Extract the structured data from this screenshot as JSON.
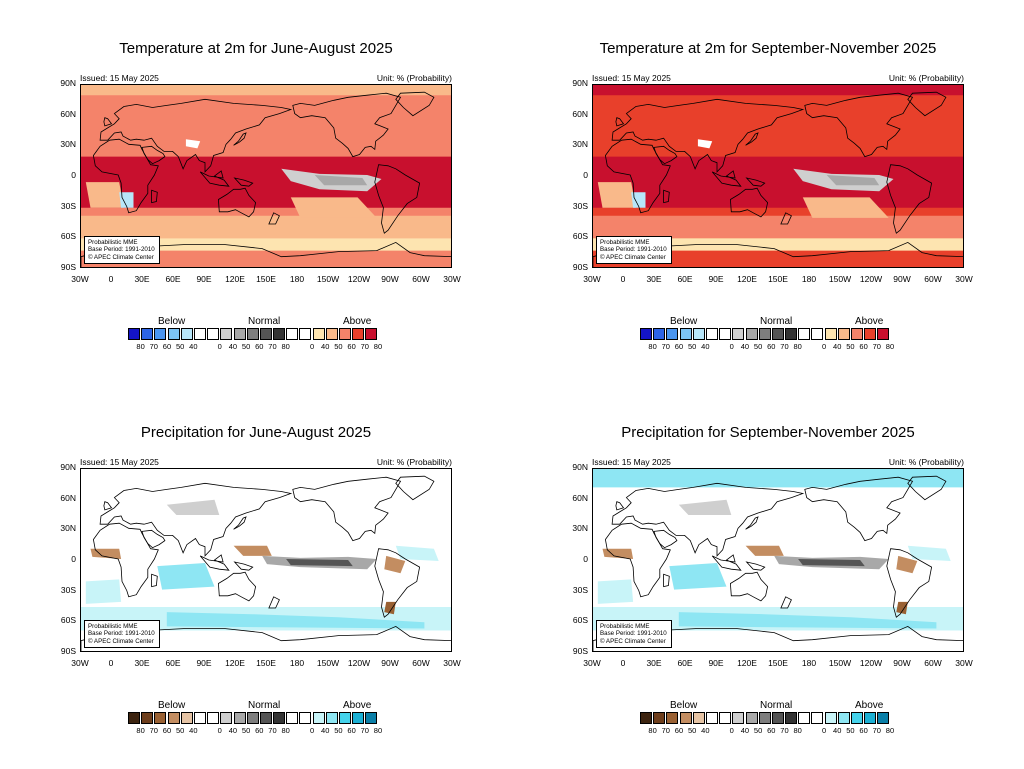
{
  "panels": [
    {
      "title": "Temperature at 2m for June-August 2025",
      "variable": "temperature",
      "palette": "temp",
      "issued": "Issued: 15 May 2025",
      "unit": "Unit: % (Probability)",
      "info": [
        "Probabilistic MME",
        "Base Period: 1991-2010",
        "© APEC Climate Center"
      ]
    },
    {
      "title": "Temperature at 2m for September-November 2025",
      "variable": "temperature",
      "palette": "temp",
      "issued": "Issued: 15 May 2025",
      "unit": "Unit: % (Probability)",
      "info": [
        "Probabilistic MME",
        "Base Period: 1991-2010",
        "© APEC Climate Center"
      ]
    },
    {
      "title": "Precipitation for June-August 2025",
      "variable": "precipitation",
      "palette": "prec",
      "issued": "Issued: 15 May 2025",
      "unit": "Unit: % (Probability)",
      "info": [
        "Probabilistic MME",
        "Base Period: 1991-2010",
        "© APEC Climate Center"
      ]
    },
    {
      "title": "Precipitation for September-November 2025",
      "variable": "precipitation",
      "palette": "prec",
      "issued": "Issued: 15 May 2025",
      "unit": "Unit: % (Probability)",
      "info": [
        "Probabilistic MME",
        "Base Period: 1991-2010",
        "© APEC Climate Center"
      ]
    }
  ],
  "axes": {
    "lat_labels": [
      "90N",
      "60N",
      "30N",
      "0",
      "30S",
      "60S",
      "90S"
    ],
    "lon_labels": [
      "30W",
      "0",
      "30E",
      "60E",
      "90E",
      "120E",
      "150E",
      "180",
      "150W",
      "120W",
      "90W",
      "60W",
      "30W"
    ]
  },
  "legend": {
    "categories": [
      "Below",
      "Normal",
      "Above"
    ],
    "below_values": [
      "80",
      "70",
      "60",
      "50",
      "40"
    ],
    "normal_values": [
      "0",
      "40",
      "50",
      "60",
      "70",
      "80"
    ],
    "above_values": [
      "0",
      "40",
      "50",
      "60",
      "70",
      "80"
    ]
  },
  "palettes": {
    "temp": {
      "below": [
        "#1414c8",
        "#2d64e6",
        "#4a95f0",
        "#7cc3f5",
        "#b7e6fa"
      ],
      "normal": [
        "#ffffff",
        "#ffffff",
        "#cfcfcf",
        "#a8a8a8",
        "#7e7e7e",
        "#555555",
        "#333333"
      ],
      "above": [
        "#ffffff",
        "#ffffff",
        "#fde4b0",
        "#f9b98a",
        "#f4836a",
        "#e8402b",
        "#c8102e"
      ]
    },
    "prec": {
      "below": [
        "#3d2410",
        "#6e3e1c",
        "#9a6133",
        "#c38d61",
        "#e6c4a5"
      ],
      "normal": [
        "#ffffff",
        "#ffffff",
        "#cfcfcf",
        "#a8a8a8",
        "#7e7e7e",
        "#555555",
        "#333333"
      ],
      "above": [
        "#ffffff",
        "#ffffff",
        "#c8f4f8",
        "#8ee6f3",
        "#45d3ec",
        "#1cb0d4",
        "#0a7fa8"
      ]
    }
  }
}
